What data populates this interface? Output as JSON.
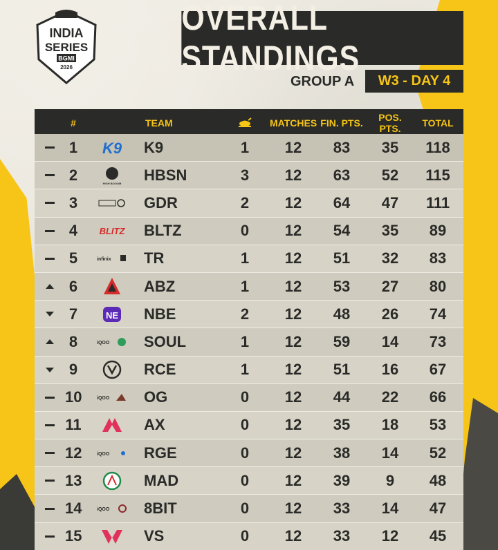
{
  "header": {
    "logo_lines": [
      "INDIA",
      "SERIES",
      "BGMI",
      "2026"
    ],
    "title": "OVERALL STANDINGS",
    "group": "GROUP A",
    "day": "W3 - DAY 4"
  },
  "colors": {
    "accent_yellow": "#f6c517",
    "dark": "#2a2a28",
    "row_light": "#d7d4c7",
    "row_dark": "#cfccbf"
  },
  "table": {
    "columns": {
      "rank": "#",
      "team": "TEAM",
      "wins_icon": "chicken-dinner-icon",
      "matches": "MATCHES",
      "fin_pts": "FIN. PTS.",
      "pos_pts": "POS. PTS.",
      "total": "TOTAL"
    },
    "rows": [
      {
        "move": "same",
        "rank": "1",
        "logo": "K9",
        "team": "K9",
        "wins": "1",
        "matches": "12",
        "fin": "83",
        "pos": "35",
        "total": "118"
      },
      {
        "move": "same",
        "rank": "2",
        "logo": "HBSN",
        "team": "HBSN",
        "wins": "3",
        "matches": "12",
        "fin": "63",
        "pos": "52",
        "total": "115"
      },
      {
        "move": "same",
        "rank": "3",
        "logo": "GDR",
        "team": "GDR",
        "wins": "2",
        "matches": "12",
        "fin": "64",
        "pos": "47",
        "total": "111"
      },
      {
        "move": "same",
        "rank": "4",
        "logo": "BLTZ",
        "team": "BLTZ",
        "wins": "0",
        "matches": "12",
        "fin": "54",
        "pos": "35",
        "total": "89"
      },
      {
        "move": "same",
        "rank": "5",
        "logo": "TR",
        "team": "TR",
        "wins": "1",
        "matches": "12",
        "fin": "51",
        "pos": "32",
        "total": "83"
      },
      {
        "move": "up",
        "rank": "6",
        "logo": "ABZ",
        "team": "ABZ",
        "wins": "1",
        "matches": "12",
        "fin": "53",
        "pos": "27",
        "total": "80"
      },
      {
        "move": "down",
        "rank": "7",
        "logo": "NBE",
        "team": "NBE",
        "wins": "2",
        "matches": "12",
        "fin": "48",
        "pos": "26",
        "total": "74"
      },
      {
        "move": "up",
        "rank": "8",
        "logo": "SOUL",
        "team": "SOUL",
        "wins": "1",
        "matches": "12",
        "fin": "59",
        "pos": "14",
        "total": "73"
      },
      {
        "move": "down",
        "rank": "9",
        "logo": "RCE",
        "team": "RCE",
        "wins": "1",
        "matches": "12",
        "fin": "51",
        "pos": "16",
        "total": "67"
      },
      {
        "move": "same",
        "rank": "10",
        "logo": "OG",
        "team": "OG",
        "wins": "0",
        "matches": "12",
        "fin": "44",
        "pos": "22",
        "total": "66"
      },
      {
        "move": "same",
        "rank": "11",
        "logo": "AX",
        "team": "AX",
        "wins": "0",
        "matches": "12",
        "fin": "35",
        "pos": "18",
        "total": "53"
      },
      {
        "move": "same",
        "rank": "12",
        "logo": "RGE",
        "team": "RGE",
        "wins": "0",
        "matches": "12",
        "fin": "38",
        "pos": "14",
        "total": "52"
      },
      {
        "move": "same",
        "rank": "13",
        "logo": "MAD",
        "team": "MAD",
        "wins": "0",
        "matches": "12",
        "fin": "39",
        "pos": "9",
        "total": "48"
      },
      {
        "move": "same",
        "rank": "14",
        "logo": "8BIT",
        "team": "8BIT",
        "wins": "0",
        "matches": "12",
        "fin": "33",
        "pos": "14",
        "total": "47"
      },
      {
        "move": "same",
        "rank": "15",
        "logo": "VS",
        "team": "VS",
        "wins": "0",
        "matches": "12",
        "fin": "33",
        "pos": "12",
        "total": "45"
      }
    ]
  }
}
